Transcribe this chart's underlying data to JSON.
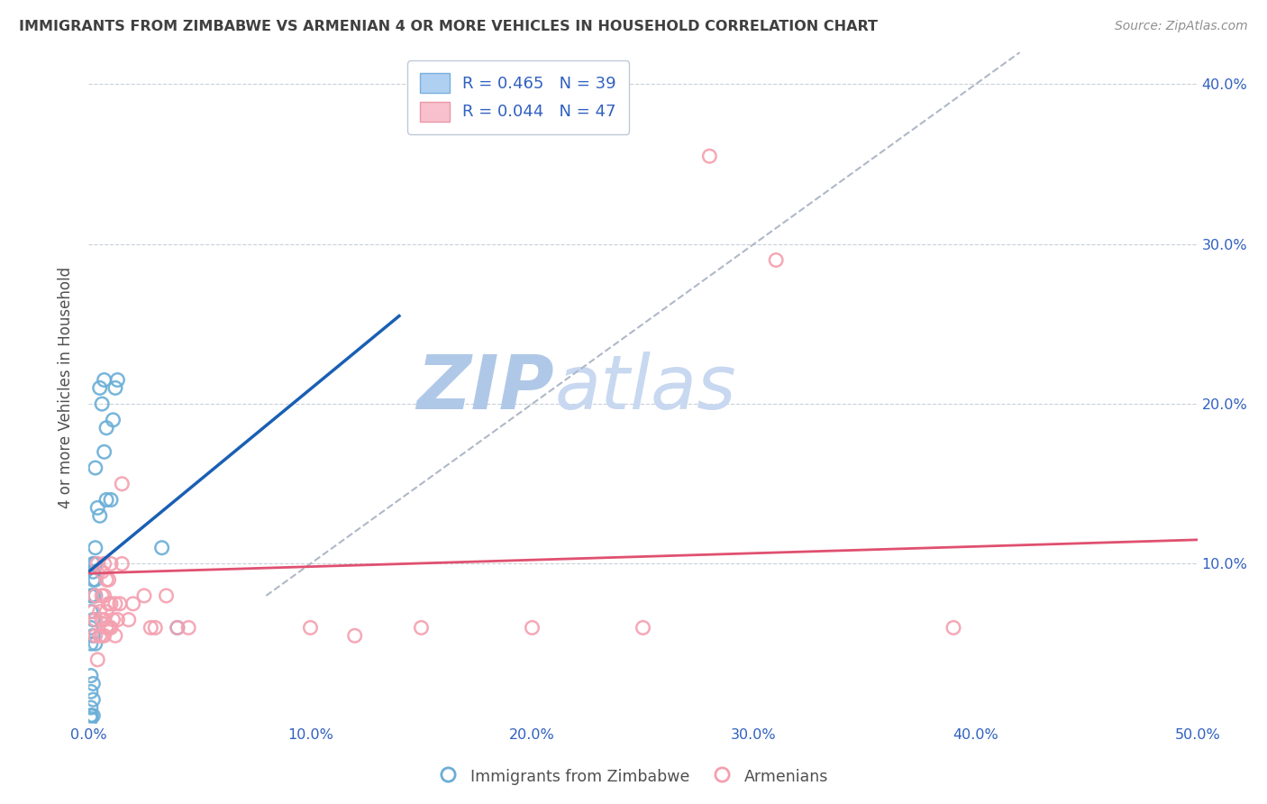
{
  "title": "IMMIGRANTS FROM ZIMBABWE VS ARMENIAN 4 OR MORE VEHICLES IN HOUSEHOLD CORRELATION CHART",
  "source": "Source: ZipAtlas.com",
  "ylabel": "4 or more Vehicles in Household",
  "xlim": [
    0.0,
    0.5
  ],
  "ylim": [
    0.0,
    0.42
  ],
  "xticks": [
    0.0,
    0.1,
    0.2,
    0.3,
    0.4,
    0.5
  ],
  "xticklabels": [
    "0.0%",
    "10.0%",
    "20.0%",
    "30.0%",
    "40.0%",
    "50.0%"
  ],
  "yticks_left": [
    0.1,
    0.2,
    0.3,
    0.4
  ],
  "yticks_right": [
    0.1,
    0.2,
    0.3,
    0.4
  ],
  "yticklabels": [
    "10.0%",
    "20.0%",
    "30.0%",
    "40.0%"
  ],
  "legend_r1": "R = 0.465",
  "legend_n1": "N = 39",
  "legend_r2": "R = 0.044",
  "legend_n2": "N = 47",
  "watermark_zip": "ZIP",
  "watermark_atlas": "atlas",
  "scatter_blue": [
    [
      0.001,
      0.005
    ],
    [
      0.001,
      0.01
    ],
    [
      0.001,
      0.02
    ],
    [
      0.001,
      0.03
    ],
    [
      0.001,
      0.05
    ],
    [
      0.001,
      0.06
    ],
    [
      0.001,
      0.07
    ],
    [
      0.001,
      0.08
    ],
    [
      0.002,
      0.005
    ],
    [
      0.002,
      0.015
    ],
    [
      0.002,
      0.025
    ],
    [
      0.002,
      0.055
    ],
    [
      0.002,
      0.065
    ],
    [
      0.002,
      0.08
    ],
    [
      0.002,
      0.09
    ],
    [
      0.002,
      0.095
    ],
    [
      0.002,
      0.1
    ],
    [
      0.003,
      0.05
    ],
    [
      0.003,
      0.08
    ],
    [
      0.003,
      0.09
    ],
    [
      0.003,
      0.1
    ],
    [
      0.003,
      0.11
    ],
    [
      0.003,
      0.16
    ],
    [
      0.004,
      0.135
    ],
    [
      0.005,
      0.13
    ],
    [
      0.005,
      0.21
    ],
    [
      0.006,
      0.2
    ],
    [
      0.007,
      0.215
    ],
    [
      0.008,
      0.14
    ],
    [
      0.008,
      0.185
    ],
    [
      0.01,
      0.14
    ],
    [
      0.011,
      0.19
    ],
    [
      0.012,
      0.21
    ],
    [
      0.013,
      0.215
    ],
    [
      0.04,
      0.06
    ],
    [
      0.001,
      0.003
    ],
    [
      0.001,
      0.005
    ],
    [
      0.033,
      0.11
    ],
    [
      0.007,
      0.17
    ]
  ],
  "scatter_pink": [
    [
      0.002,
      0.07
    ],
    [
      0.003,
      0.055
    ],
    [
      0.003,
      0.065
    ],
    [
      0.003,
      0.08
    ],
    [
      0.004,
      0.04
    ],
    [
      0.004,
      0.1
    ],
    [
      0.005,
      0.055
    ],
    [
      0.005,
      0.07
    ],
    [
      0.006,
      0.055
    ],
    [
      0.006,
      0.065
    ],
    [
      0.006,
      0.08
    ],
    [
      0.006,
      0.095
    ],
    [
      0.007,
      0.055
    ],
    [
      0.007,
      0.065
    ],
    [
      0.007,
      0.08
    ],
    [
      0.007,
      0.1
    ],
    [
      0.008,
      0.06
    ],
    [
      0.008,
      0.07
    ],
    [
      0.008,
      0.09
    ],
    [
      0.009,
      0.06
    ],
    [
      0.009,
      0.075
    ],
    [
      0.009,
      0.09
    ],
    [
      0.01,
      0.06
    ],
    [
      0.01,
      0.075
    ],
    [
      0.01,
      0.1
    ],
    [
      0.011,
      0.065
    ],
    [
      0.012,
      0.055
    ],
    [
      0.012,
      0.075
    ],
    [
      0.013,
      0.065
    ],
    [
      0.014,
      0.075
    ],
    [
      0.015,
      0.1
    ],
    [
      0.015,
      0.15
    ],
    [
      0.018,
      0.065
    ],
    [
      0.02,
      0.075
    ],
    [
      0.025,
      0.08
    ],
    [
      0.028,
      0.06
    ],
    [
      0.03,
      0.06
    ],
    [
      0.035,
      0.08
    ],
    [
      0.04,
      0.06
    ],
    [
      0.045,
      0.06
    ],
    [
      0.1,
      0.06
    ],
    [
      0.12,
      0.055
    ],
    [
      0.15,
      0.06
    ],
    [
      0.2,
      0.06
    ],
    [
      0.25,
      0.06
    ],
    [
      0.28,
      0.355
    ],
    [
      0.31,
      0.29
    ],
    [
      0.39,
      0.06
    ]
  ],
  "blue_line_x": [
    0.0,
    0.14
  ],
  "blue_line_y": [
    0.095,
    0.255
  ],
  "pink_line_x": [
    0.0,
    0.5
  ],
  "pink_line_y": [
    0.094,
    0.115
  ],
  "dashed_line_x": [
    0.08,
    0.42
  ],
  "dashed_line_y": [
    0.08,
    0.42
  ],
  "blue_color": "#6aaed6",
  "pink_color": "#f4a0b0",
  "blue_line_color": "#1a5fb4",
  "pink_line_color": "#e05070",
  "dashed_color": "#b0b8c8",
  "background_color": "#ffffff",
  "grid_color": "#c8d0d8",
  "title_color": "#404040",
  "source_color": "#909090",
  "legend_text_color": "#3060c0",
  "watermark_color_zip": "#b0c8e8",
  "watermark_color_atlas": "#c8d8f0"
}
